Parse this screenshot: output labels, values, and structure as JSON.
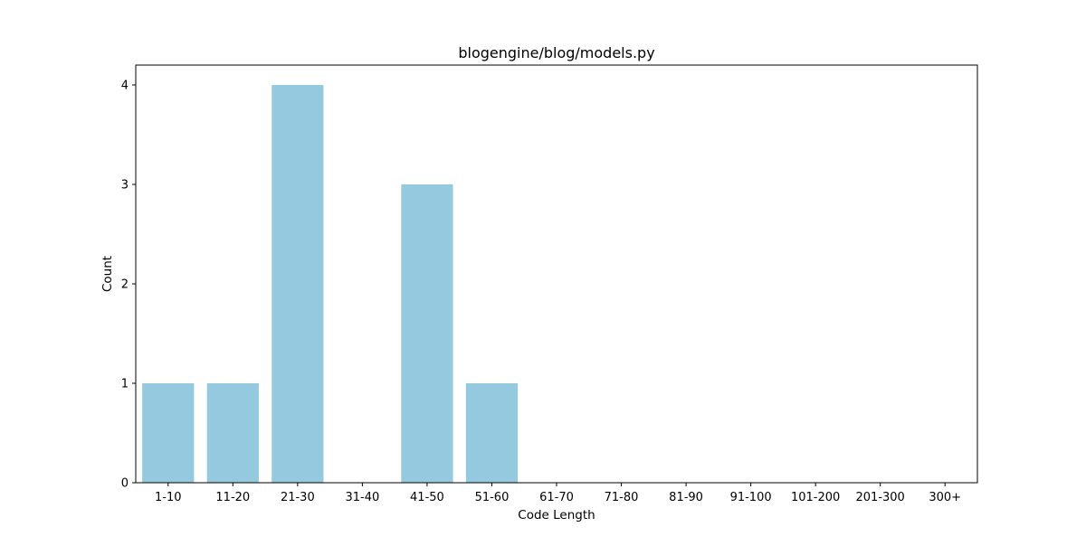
{
  "chart_data": {
    "type": "bar",
    "title": "blogengine/blog/models.py",
    "xlabel": "Code Length",
    "ylabel": "Count",
    "categories": [
      "1-10",
      "11-20",
      "21-30",
      "31-40",
      "41-50",
      "51-60",
      "61-70",
      "71-80",
      "81-90",
      "91-100",
      "101-200",
      "201-300",
      "300+"
    ],
    "values": [
      1,
      1,
      4,
      0,
      3,
      1,
      0,
      0,
      0,
      0,
      0,
      0,
      0
    ],
    "yticks": [
      0,
      1,
      2,
      3,
      4
    ],
    "ylim": [
      0,
      4.2
    ],
    "grid": false,
    "legend": "none",
    "bar_color": "#95c9df"
  }
}
